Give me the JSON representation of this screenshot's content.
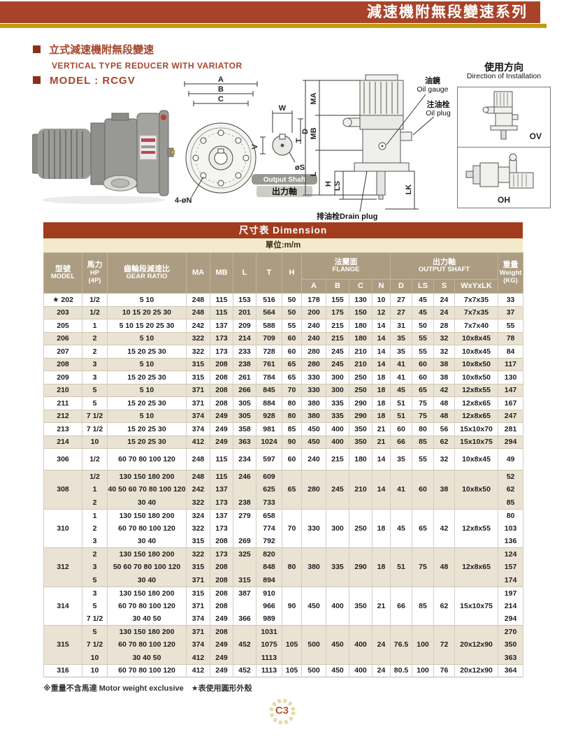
{
  "header": {
    "series_title": "減速機附無段變速系列"
  },
  "intro": {
    "title_zh": "立式減速機附無段變速",
    "title_en": "VERTICAL TYPE REDUCER WITH VARIATOR",
    "model_label": "MODEL : RCGV"
  },
  "installation": {
    "title_zh": "使用方向",
    "title_en": "Direction of Installation",
    "vertical_label": "OV",
    "horizontal_label": "OH"
  },
  "diagrams": {
    "front": {
      "a": "A",
      "b": "B",
      "c": "C",
      "bolts": "4-øN"
    },
    "shaft": {
      "w": "W",
      "d": "D",
      "v": "V",
      "s": "øS",
      "caption_en": "Output Shaft",
      "caption_zh": "出力軸"
    },
    "side": {
      "ma": "MA",
      "mb": "MB",
      "t": "T",
      "l": "L",
      "h": "H",
      "ls": "LS",
      "lk": "LK",
      "oil_gauge_zh": "油鏡",
      "oil_gauge_en": "Oil gauge",
      "oil_plug_zh": "注油栓",
      "oil_plug_en": "Oil plug",
      "drain_plug": "排油栓Drain plug"
    }
  },
  "table": {
    "title": "尺寸表  Dimension",
    "unit": "單位:m/m",
    "star_mark": "★",
    "headers": {
      "model_zh": "型號",
      "model_en": "MODEL",
      "hp_zh": "馬力",
      "hp_en": "HP",
      "hp_sub": "(4P)",
      "ratio_zh": "齒輪段減速比",
      "ratio_en": "GEAR RATIO",
      "ma": "MA",
      "mb": "MB",
      "l": "L",
      "t": "T",
      "h": "H",
      "flange_zh": "法蘭面",
      "flange_en": "FLANGE",
      "shaft_zh": "出力軸",
      "shaft_en": "OUTPUT SHAFT",
      "cols": {
        "a": "A",
        "b": "B",
        "c": "C",
        "n": "N",
        "d": "D",
        "ls": "LS",
        "s": "S",
        "wyl": "WxYxLK"
      },
      "weight_zh": "重量",
      "weight_en": "Weight",
      "weight_sub": "(KG)"
    },
    "groups": [
      {
        "model": "202",
        "star": true,
        "shade": false,
        "h": "50",
        "a": "178",
        "b": "155",
        "c": "130",
        "n": "10",
        "d": "27",
        "ls": "45",
        "s": "24",
        "wyl": "7x7x35",
        "subs": [
          {
            "hp": "1/2",
            "ratio": "5 10",
            "ma": "248",
            "mb": "115",
            "l": "153",
            "t": "516",
            "wt": "33"
          }
        ]
      },
      {
        "model": "203",
        "shade": true,
        "h": "50",
        "a": "200",
        "b": "175",
        "c": "150",
        "n": "12",
        "d": "27",
        "ls": "45",
        "s": "24",
        "wyl": "7x7x35",
        "subs": [
          {
            "hp": "1/2",
            "ratio": "10 15 20 25 30",
            "ma": "248",
            "mb": "115",
            "l": "201",
            "t": "564",
            "wt": "37"
          }
        ]
      },
      {
        "model": "205",
        "shade": false,
        "h": "55",
        "a": "240",
        "b": "215",
        "c": "180",
        "n": "14",
        "d": "31",
        "ls": "50",
        "s": "28",
        "wyl": "7x7x40",
        "subs": [
          {
            "hp": "1",
            "ratio": "5 10 15 20 25 30",
            "ma": "242",
            "mb": "137",
            "l": "209",
            "t": "588",
            "wt": "55"
          }
        ]
      },
      {
        "model": "206",
        "shade": true,
        "h": "60",
        "a": "240",
        "b": "215",
        "c": "180",
        "n": "14",
        "d": "35",
        "ls": "55",
        "s": "32",
        "wyl": "10x8x45",
        "subs": [
          {
            "hp": "2",
            "ratio": "5 10",
            "ma": "322",
            "mb": "173",
            "l": "214",
            "t": "709",
            "wt": "78"
          }
        ]
      },
      {
        "model": "207",
        "shade": false,
        "h": "60",
        "a": "280",
        "b": "245",
        "c": "210",
        "n": "14",
        "d": "35",
        "ls": "55",
        "s": "32",
        "wyl": "10x8x45",
        "subs": [
          {
            "hp": "2",
            "ratio": "15 20 25 30",
            "ma": "322",
            "mb": "173",
            "l": "233",
            "t": "728",
            "wt": "84"
          }
        ]
      },
      {
        "model": "208",
        "shade": true,
        "h": "65",
        "a": "280",
        "b": "245",
        "c": "210",
        "n": "14",
        "d": "41",
        "ls": "60",
        "s": "38",
        "wyl": "10x8x50",
        "subs": [
          {
            "hp": "3",
            "ratio": "5 10",
            "ma": "315",
            "mb": "208",
            "l": "238",
            "t": "761",
            "wt": "117"
          }
        ]
      },
      {
        "model": "209",
        "shade": false,
        "h": "65",
        "a": "330",
        "b": "300",
        "c": "250",
        "n": "18",
        "d": "41",
        "ls": "60",
        "s": "38",
        "wyl": "10x8x50",
        "subs": [
          {
            "hp": "3",
            "ratio": "15 20 25 30",
            "ma": "315",
            "mb": "208",
            "l": "261",
            "t": "784",
            "wt": "130"
          }
        ]
      },
      {
        "model": "210",
        "shade": true,
        "h": "70",
        "a": "330",
        "b": "300",
        "c": "250",
        "n": "18",
        "d": "45",
        "ls": "65",
        "s": "42",
        "wyl": "12x8x55",
        "subs": [
          {
            "hp": "5",
            "ratio": "5 10",
            "ma": "371",
            "mb": "208",
            "l": "266",
            "t": "845",
            "wt": "147"
          }
        ]
      },
      {
        "model": "211",
        "shade": false,
        "h": "80",
        "a": "380",
        "b": "335",
        "c": "290",
        "n": "18",
        "d": "51",
        "ls": "75",
        "s": "48",
        "wyl": "12x8x65",
        "subs": [
          {
            "hp": "5",
            "ratio": "15 20 25 30",
            "ma": "371",
            "mb": "208",
            "l": "305",
            "t": "884",
            "wt": "167"
          }
        ]
      },
      {
        "model": "212",
        "shade": true,
        "h": "80",
        "a": "380",
        "b": "335",
        "c": "290",
        "n": "18",
        "d": "51",
        "ls": "75",
        "s": "48",
        "wyl": "12x8x65",
        "subs": [
          {
            "hp": "7 1/2",
            "ratio": "5 10",
            "ma": "374",
            "mb": "249",
            "l": "305",
            "t": "928",
            "wt": "247"
          }
        ]
      },
      {
        "model": "213",
        "shade": false,
        "h": "85",
        "a": "450",
        "b": "400",
        "c": "350",
        "n": "21",
        "d": "60",
        "ls": "80",
        "s": "56",
        "wyl": "15x10x70",
        "subs": [
          {
            "hp": "7 1/2",
            "ratio": "15 20 25 30",
            "ma": "374",
            "mb": "249",
            "l": "358",
            "t": "981",
            "wt": "281"
          }
        ]
      },
      {
        "model": "214",
        "shade": true,
        "h": "90",
        "a": "450",
        "b": "400",
        "c": "350",
        "n": "21",
        "d": "66",
        "ls": "85",
        "s": "62",
        "wyl": "15x10x75",
        "subs": [
          {
            "hp": "10",
            "ratio": "15 20 25 30",
            "ma": "412",
            "mb": "249",
            "l": "363",
            "t": "1024",
            "wt": "294"
          }
        ]
      },
      {
        "model": "306",
        "shade": false,
        "tall": true,
        "h": "60",
        "a": "240",
        "b": "215",
        "c": "180",
        "n": "14",
        "d": "35",
        "ls": "55",
        "s": "32",
        "wyl": "10x8x45",
        "subs": [
          {
            "hp": "1/2",
            "ratio": "60 70 80 100 120",
            "ma": "248",
            "mb": "115",
            "l": "234",
            "t": "597",
            "wt": "49"
          }
        ]
      },
      {
        "model": "308",
        "shade": true,
        "h": "65",
        "a": "280",
        "b": "245",
        "c": "210",
        "n": "14",
        "d": "41",
        "ls": "60",
        "s": "38",
        "wyl": "10x8x50",
        "subs": [
          {
            "hp": "1/2",
            "ratio": "130 150 180 200",
            "ma": "248",
            "mb": "115",
            "l": "246",
            "t": "609",
            "wt": "52"
          },
          {
            "hp": "1",
            "ratio": "40 50 60 70 80 100 120",
            "ma": "242",
            "mb": "137",
            "l": "",
            "t": "625",
            "wt": "62"
          },
          {
            "hp": "2",
            "ratio": "30 40",
            "ma": "322",
            "mb": "173",
            "l": "238",
            "t": "733",
            "wt": "85"
          }
        ]
      },
      {
        "model": "310",
        "shade": false,
        "h": "70",
        "a": "330",
        "b": "300",
        "c": "250",
        "n": "18",
        "d": "45",
        "ls": "65",
        "s": "42",
        "wyl": "12x8x55",
        "subs": [
          {
            "hp": "1",
            "ratio": "130 150 180 200",
            "ma": "324",
            "mb": "137",
            "l": "279",
            "t": "658",
            "wt": "80"
          },
          {
            "hp": "2",
            "ratio": "60 70 80 100 120",
            "ma": "322",
            "mb": "173",
            "l": "",
            "t": "774",
            "wt": "103"
          },
          {
            "hp": "3",
            "ratio": "30 40",
            "ma": "315",
            "mb": "208",
            "l": "269",
            "t": "792",
            "wt": "136"
          }
        ]
      },
      {
        "model": "312",
        "shade": true,
        "h": "80",
        "a": "380",
        "b": "335",
        "c": "290",
        "n": "18",
        "d": "51",
        "ls": "75",
        "s": "48",
        "wyl": "12x8x65",
        "subs": [
          {
            "hp": "2",
            "ratio": "130 150 180 200",
            "ma": "322",
            "mb": "173",
            "l": "325",
            "t": "820",
            "wt": "124"
          },
          {
            "hp": "3",
            "ratio": "50 60 70 80 100 120",
            "ma": "315",
            "mb": "208",
            "l": "",
            "t": "848",
            "wt": "157"
          },
          {
            "hp": "5",
            "ratio": "30 40",
            "ma": "371",
            "mb": "208",
            "l": "315",
            "t": "894",
            "wt": "174"
          }
        ]
      },
      {
        "model": "314",
        "shade": false,
        "h": "90",
        "a": "450",
        "b": "400",
        "c": "350",
        "n": "21",
        "d": "66",
        "ls": "85",
        "s": "62",
        "wyl": "15x10x75",
        "subs": [
          {
            "hp": "3",
            "ratio": "130 150 180 200",
            "ma": "315",
            "mb": "208",
            "l": "387",
            "t": "910",
            "wt": "197"
          },
          {
            "hp": "5",
            "ratio": "60 70 80 100 120",
            "ma": "371",
            "mb": "208",
            "l": "",
            "t": "966",
            "wt": "214"
          },
          {
            "hp": "7 1/2",
            "ratio": "30 40 50",
            "ma": "374",
            "mb": "249",
            "l": "366",
            "t": "989",
            "wt": "294"
          }
        ]
      },
      {
        "model": "315",
        "shade": true,
        "h": "105",
        "a": "500",
        "b": "450",
        "c": "400",
        "n": "24",
        "d": "76.5",
        "ls": "100",
        "s": "72",
        "wyl": "20x12x90",
        "subs": [
          {
            "hp": "5",
            "ratio": "130 150 180 200",
            "ma": "371",
            "mb": "208",
            "l": "",
            "t": "1031",
            "wt": "270"
          },
          {
            "hp": "7 1/2",
            "ratio": "60 70 80 100 120",
            "ma": "374",
            "mb": "249",
            "l": "452",
            "t": "1075",
            "wt": "350"
          },
          {
            "hp": "10",
            "ratio": "30 40 50",
            "ma": "412",
            "mb": "249",
            "l": "",
            "t": "1113",
            "wt": "363"
          }
        ]
      },
      {
        "model": "316",
        "shade": false,
        "h": "105",
        "a": "500",
        "b": "450",
        "c": "400",
        "n": "24",
        "d": "80.5",
        "ls": "100",
        "s": "76",
        "wyl": "20x12x90",
        "subs": [
          {
            "hp": "10",
            "ratio": "60 70 80 100 120",
            "ma": "412",
            "mb": "249",
            "l": "452",
            "t": "1113",
            "wt": "364"
          }
        ]
      }
    ]
  },
  "footnote": {
    "text": "※重量不含馬達  Motor weight exclusive　★表使用圓形外殼"
  },
  "page_number": "C3",
  "colors": {
    "accent": "#A23C1F",
    "banner": "#A8432A",
    "gold": "#C49B0B",
    "header_tan": "#AC9C81",
    "row_shade": "#EAE3D4",
    "cream": "#F3EACB"
  }
}
